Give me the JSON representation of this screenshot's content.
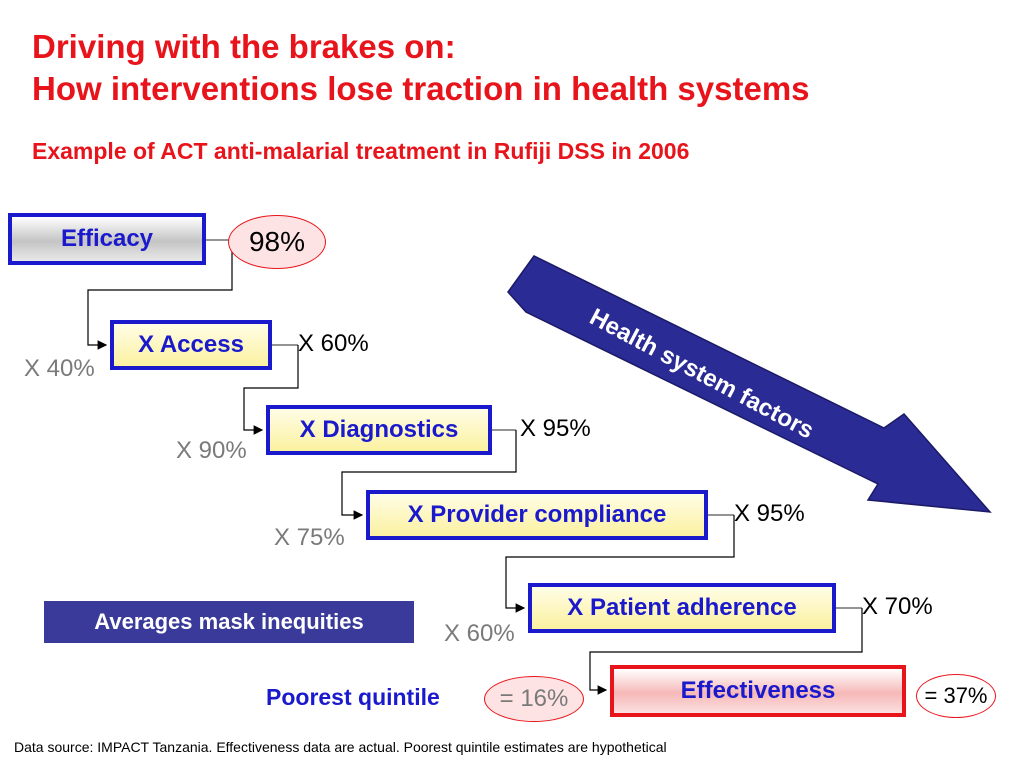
{
  "title": {
    "line1": "Driving with the brakes on:",
    "line2": "How interventions lose traction in health systems"
  },
  "subtitle": "Example of ACT anti-malarial treatment in Rufiji DSS in 2006",
  "steps": [
    {
      "label": "Efficacy",
      "value": "98%"
    },
    {
      "label": "X  Access",
      "right_value": "X 60%",
      "left_value": "X 40%"
    },
    {
      "label": "X  Diagnostics",
      "right_value": "X 95%",
      "left_value": "X 90%"
    },
    {
      "label": "X  Provider compliance",
      "right_value": "X 95%",
      "left_value": "X 75%"
    },
    {
      "label": "X  Patient adherence",
      "right_value": "X 70%",
      "left_value": "X 60%"
    },
    {
      "label": "Effectiveness",
      "value": "= 37%"
    }
  ],
  "health_arrow_label": "Health system factors",
  "banner": "Averages mask inequities",
  "poorest": {
    "label": "Poorest quintile",
    "value": "= 16%"
  },
  "footer": "Data source: IMPACT Tanzania. Effectiveness data are actual.  Poorest quintile estimates are hypothetical",
  "colors": {
    "title_red": "#e8141b",
    "box_blue": "#1a1acc",
    "arrow_navy": "#2b2b96",
    "box_yellow": "#fbf1a0"
  }
}
